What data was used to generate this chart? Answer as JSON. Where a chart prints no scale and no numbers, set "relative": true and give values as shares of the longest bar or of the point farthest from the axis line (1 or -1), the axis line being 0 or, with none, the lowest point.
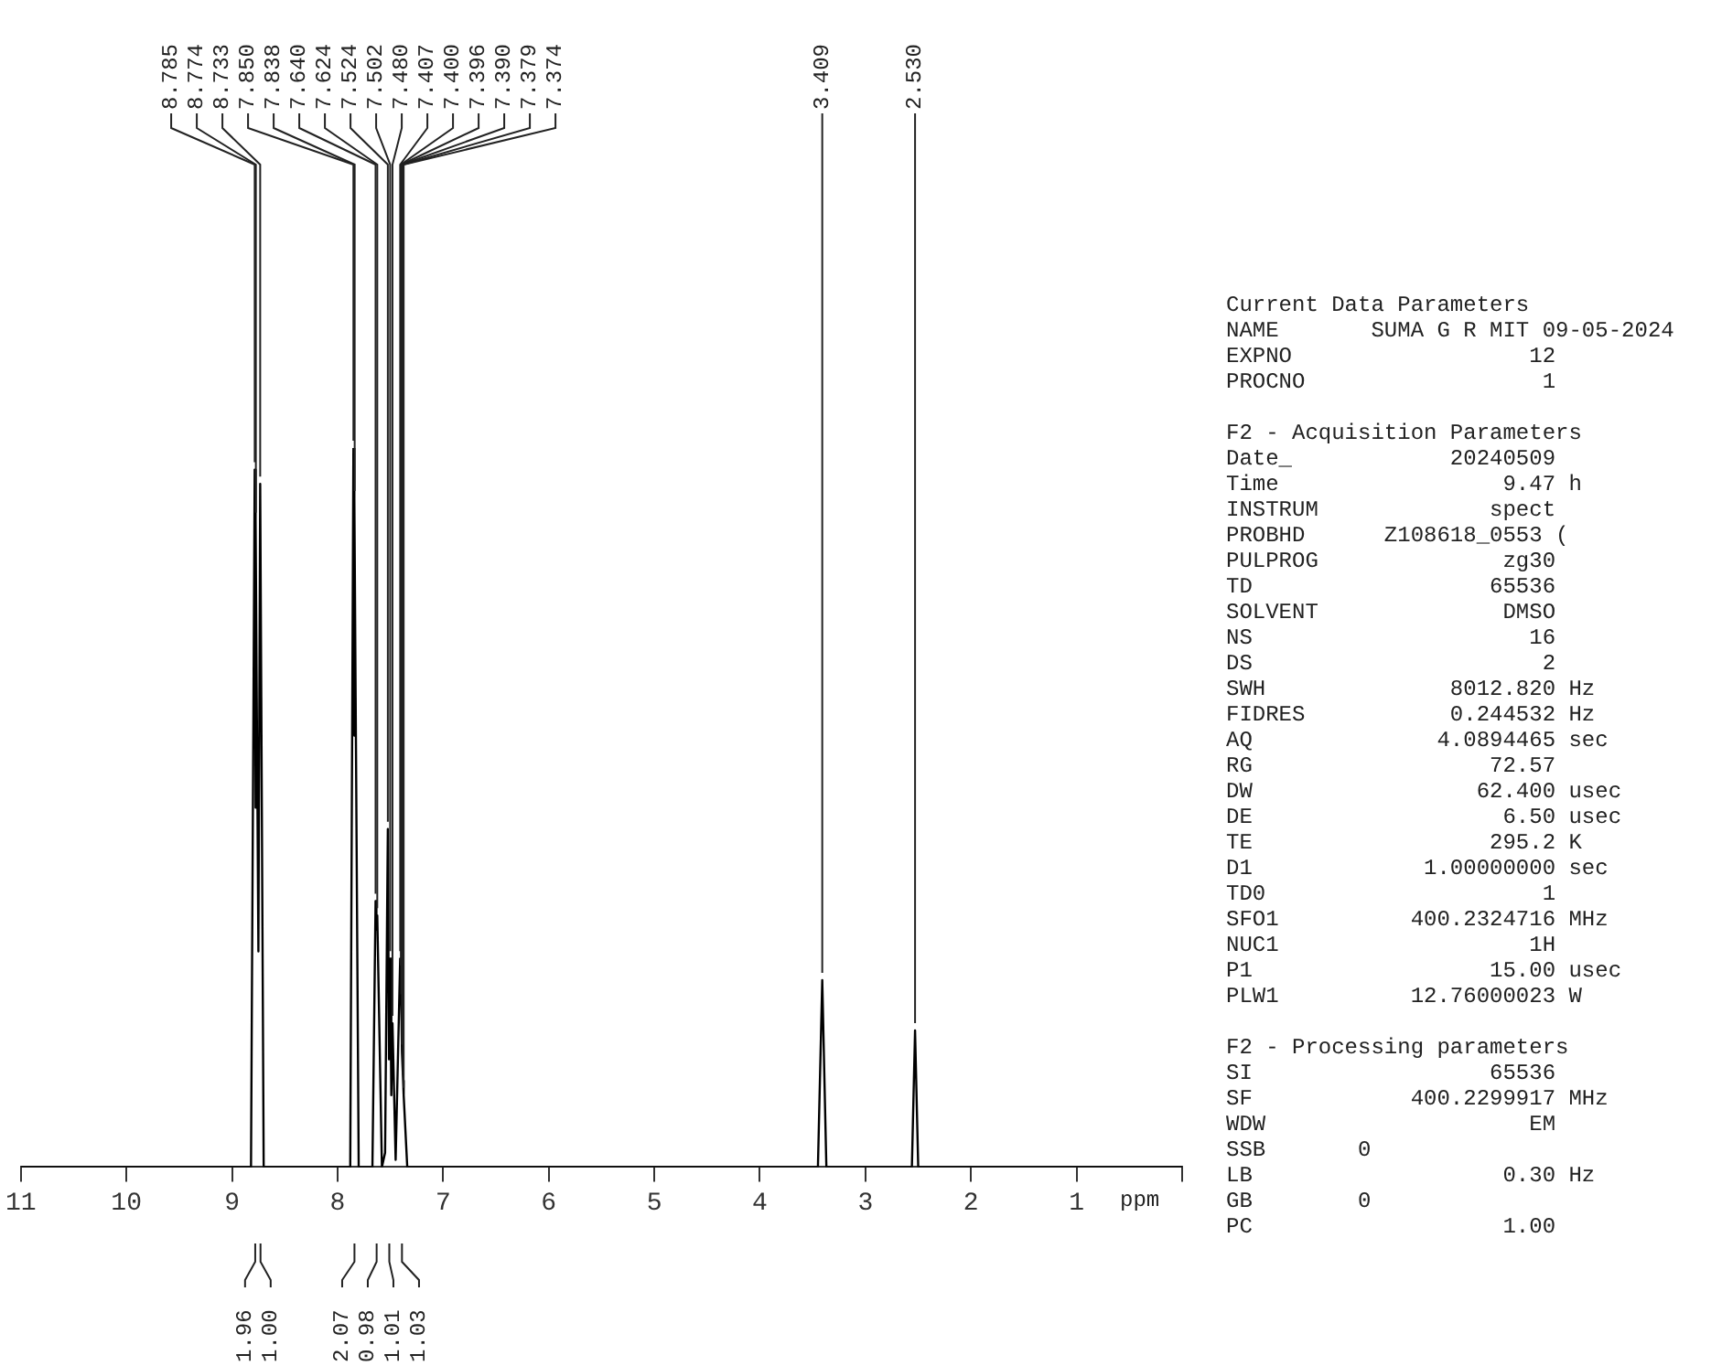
{
  "chart_data": {
    "type": "line",
    "relative": true,
    "xlabel": "ppm",
    "xlim": [
      11,
      0
    ],
    "xticks": [
      11,
      10,
      9,
      8,
      7,
      6,
      5,
      4,
      3,
      2,
      1,
      {
        "value": 0,
        "label": null
      }
    ],
    "grid": false,
    "legend": false,
    "marker": "none",
    "line_style": "solid",
    "series": [
      {
        "color": "#000000",
        "x": [
          11,
          8.82,
          8.785,
          8.779,
          8.774,
          8.75,
          8.733,
          8.7,
          7.88,
          7.85,
          7.844,
          7.838,
          7.8,
          7.67,
          7.64,
          7.632,
          7.624,
          7.58,
          7.55,
          7.524,
          7.513,
          7.502,
          7.491,
          7.48,
          7.45,
          7.407,
          7.4,
          7.39,
          7.379,
          7.374,
          7.34,
          3.45,
          3.409,
          3.37,
          2.56,
          2.53,
          2.5,
          0
        ],
        "values": [
          0,
          0,
          0.97,
          0.5,
          0.9,
          0.3,
          0.95,
          0,
          0,
          1,
          0.6,
          0.93,
          0,
          0,
          0.37,
          0.33,
          0.35,
          0,
          0.02,
          0.47,
          0.15,
          0.29,
          0.1,
          0.2,
          0.01,
          0.29,
          0.27,
          0.16,
          0.12,
          0.1,
          0,
          0,
          0.26,
          0,
          0,
          0.19,
          0,
          0
        ]
      }
    ],
    "annotations": [
      {
        "text": "8.785",
        "x": 8.785,
        "y": 0.97
      },
      {
        "text": "8.774",
        "x": 8.774,
        "y": 0.9
      },
      {
        "text": "8.733",
        "x": 8.733,
        "y": 0.95
      },
      {
        "text": "7.850",
        "x": 7.85,
        "y": 1
      },
      {
        "text": "7.838",
        "x": 7.838,
        "y": 0.93
      },
      {
        "text": "7.640",
        "x": 7.64,
        "y": 0.37
      },
      {
        "text": "7.624",
        "x": 7.624,
        "y": 0.35
      },
      {
        "text": "7.524",
        "x": 7.524,
        "y": 0.47
      },
      {
        "text": "7.502",
        "x": 7.502,
        "y": 0.29
      },
      {
        "text": "7.480",
        "x": 7.48,
        "y": 0.2
      },
      {
        "text": "7.407",
        "x": 7.407,
        "y": 0.29
      },
      {
        "text": "7.400",
        "x": 7.4,
        "y": 0.27
      },
      {
        "text": "7.396",
        "x": 7.396,
        "y": 0.23
      },
      {
        "text": "7.390",
        "x": 7.39,
        "y": 0.16
      },
      {
        "text": "7.379",
        "x": 7.379,
        "y": 0.12
      },
      {
        "text": "7.374",
        "x": 7.374,
        "y": 0.1
      },
      {
        "text": "3.409",
        "x": 3.409,
        "y": 0.26
      },
      {
        "text": "2.530",
        "x": 2.53,
        "y": 0.19
      },
      {
        "text": "1.96",
        "x": 8.78
      },
      {
        "text": "1.00",
        "x": 8.73
      },
      {
        "text": "2.07",
        "x": 7.84
      },
      {
        "text": "0.98",
        "x": 7.63
      },
      {
        "text": "1.01",
        "x": 7.51
      },
      {
        "text": "1.03",
        "x": 7.39
      },
      "Current Data Parameters\nNAME       SUMA G R MIT 09-05-2024\nEXPNO                  12\nPROCNO                  1",
      "F2 - Acquisition Parameters\nDate_            20240509\nTime                 9.47 h\nINSTRUM             spect\nPROBHD      Z108618_0553 (\nPULPROG              zg30\nTD                  65536\nSOLVENT              DMSO\nNS                     16\nDS                      2\nSWH              8012.820 Hz\nFIDRES           0.244532 Hz\nAQ              4.0894465 sec\nRG                  72.57\nDW                 62.400 usec\nDE                   6.50 usec\nTE                  295.2 K\nD1             1.00000000 sec\nTD0                     1\nSFO1          400.2324716 MHz\nNUC1                   1H\nP1                  15.00 usec\nPLW1          12.76000023 W",
      "F2 - Processing parameters\nSI                  65536\nSF            400.2299917 MHz\nWDW                    EM\nSSB       0\nLB                   0.30 Hz\nGB        0\nPC                   1.00"
    ]
  }
}
